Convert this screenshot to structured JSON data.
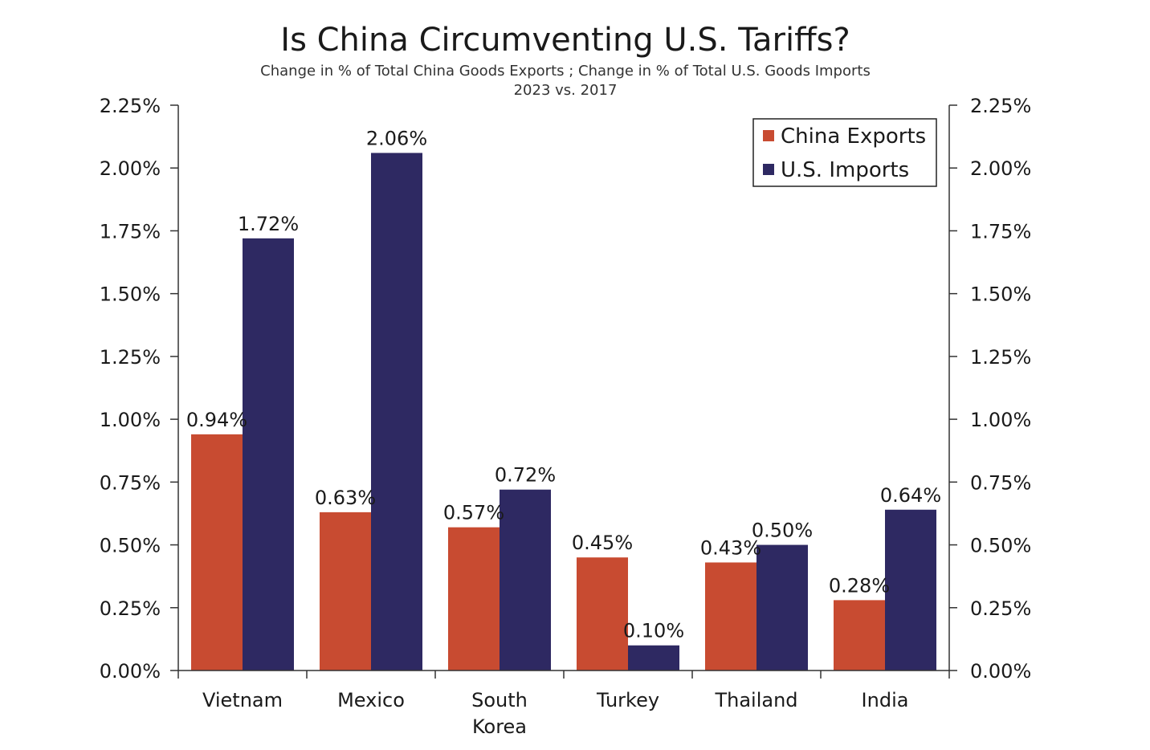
{
  "chart_data": {
    "type": "bar",
    "title": "Is China Circumventing U.S. Tariffs?",
    "subtitle_lines": [
      "Change in % of Total China Goods Exports ; Change in % of Total U.S. Goods Imports",
      "2023 vs. 2017"
    ],
    "categories": [
      [
        "Vietnam"
      ],
      [
        "Mexico"
      ],
      [
        "South",
        "Korea"
      ],
      [
        "Turkey"
      ],
      [
        "Thailand"
      ],
      [
        "India"
      ]
    ],
    "series": [
      {
        "name": "China Exports",
        "color": "#C84B31",
        "values": [
          0.94,
          0.63,
          0.57,
          0.45,
          0.43,
          0.28
        ],
        "labels": [
          "0.94%",
          "0.63%",
          "0.57%",
          "0.45%",
          "0.43%",
          "0.28%"
        ]
      },
      {
        "name": "U.S. Imports",
        "color": "#2E2962",
        "values": [
          1.72,
          2.06,
          0.72,
          0.1,
          0.5,
          0.64
        ],
        "labels": [
          "1.72%",
          "2.06%",
          "0.72%",
          "0.10%",
          "0.50%",
          "0.64%"
        ]
      }
    ],
    "ylim": [
      0,
      2.25
    ],
    "yticks": [
      0,
      0.25,
      0.5,
      0.75,
      1.0,
      1.25,
      1.5,
      1.75,
      2.0,
      2.25
    ],
    "ytick_labels": [
      "0.00%",
      "0.25%",
      "0.50%",
      "0.75%",
      "1.00%",
      "1.25%",
      "1.50%",
      "1.75%",
      "2.00%",
      "2.25%"
    ],
    "secondary_axis": true,
    "grid": false,
    "legend_position": "top-right"
  }
}
